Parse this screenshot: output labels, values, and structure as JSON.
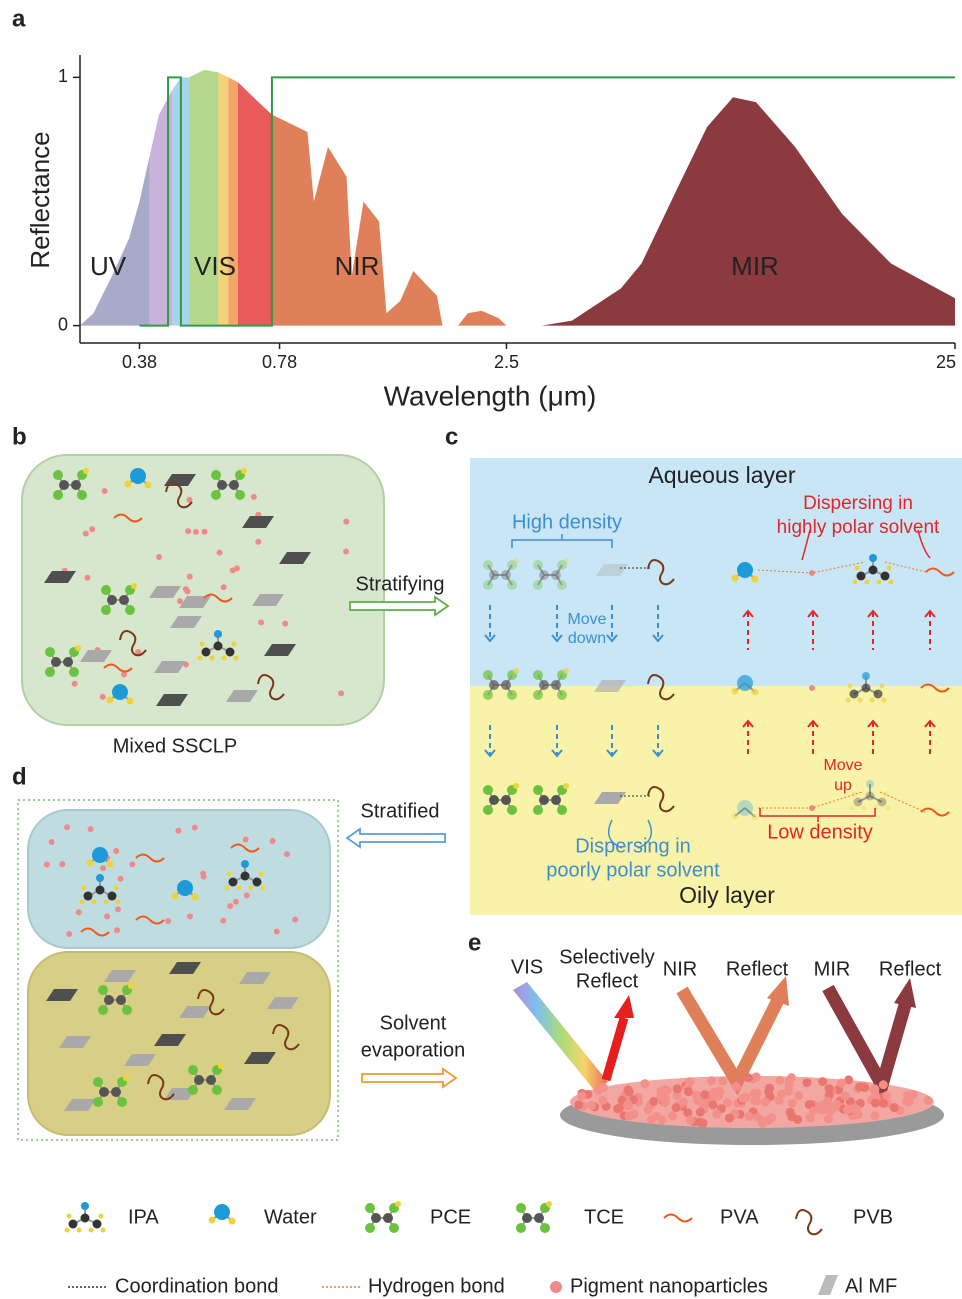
{
  "chart_data": {
    "type": "area",
    "ylabel": "Reflectance",
    "xlabel": "Wavelength (μm)",
    "band_labels": [
      "UV",
      "VIS",
      "NIR",
      "MIR"
    ],
    "xlim": [
      0.28,
      25
    ],
    "ylim": [
      -0.07,
      1.09
    ],
    "x_log": true,
    "xticks": [
      0.38,
      0.78,
      2.5,
      25
    ],
    "yticks": [
      0,
      1
    ],
    "series": [
      {
        "color": "#a9a9c9",
        "x": [
          0.28,
          0.3,
          0.33,
          0.36,
          0.38,
          0.4
        ],
        "values": [
          0,
          0.05,
          0.2,
          0.35,
          0.5,
          0.68
        ]
      },
      {
        "color": "#cab3da",
        "x": [
          0.4,
          0.42,
          0.45
        ],
        "values": [
          0.68,
          0.85,
          0.95
        ]
      },
      {
        "color": "#a9d4ee",
        "x": [
          0.45,
          0.47,
          0.49
        ],
        "values": [
          0.95,
          1.0,
          1.0
        ]
      },
      {
        "color": "#b5d98c",
        "x": [
          0.49,
          0.53,
          0.57
        ],
        "values": [
          1.0,
          1.03,
          1.02
        ]
      },
      {
        "color": "#f5d27a",
        "x": [
          0.57,
          0.6
        ],
        "values": [
          1.02,
          1.0
        ]
      },
      {
        "color": "#f4a56a",
        "x": [
          0.6,
          0.63
        ],
        "values": [
          1.0,
          0.98
        ]
      },
      {
        "color": "#e95a5a",
        "x": [
          0.63,
          0.7,
          0.75
        ],
        "values": [
          0.98,
          0.9,
          0.85
        ]
      },
      {
        "color": "#e0805a",
        "x": [
          0.75,
          0.9,
          0.93,
          1.0,
          1.1,
          1.13,
          1.2,
          1.3,
          1.35,
          1.45,
          1.55,
          1.75,
          1.8,
          1.95,
          2.05,
          2.2,
          2.4,
          2.5
        ],
        "values": [
          0.85,
          0.78,
          0.5,
          0.72,
          0.6,
          0.2,
          0.5,
          0.42,
          0.05,
          0.1,
          0.22,
          0.12,
          0,
          0,
          0.05,
          0.06,
          0.03,
          0
        ]
      },
      {
        "color": "#8b3a3f",
        "x": [
          3,
          3.5,
          4.5,
          5,
          6,
          7,
          8,
          9,
          11,
          14,
          18,
          25
        ],
        "values": [
          0,
          0.02,
          0.15,
          0.25,
          0.55,
          0.8,
          0.92,
          0.9,
          0.72,
          0.45,
          0.25,
          0.11
        ]
      }
    ],
    "reflectance_line": {
      "color": "#2e9a48",
      "x": [
        0.38,
        0.44,
        0.44,
        0.47,
        0.47,
        0.75,
        0.75,
        25
      ],
      "values": [
        0,
        0,
        1,
        1,
        0,
        0,
        1,
        1
      ]
    }
  },
  "panel_labels": [
    "a",
    "b",
    "c",
    "d",
    "e"
  ],
  "panel_b": {
    "caption": "Mixed SSCLP",
    "arrow_label": "Stratifying"
  },
  "panel_c": {
    "top_layer": "Aqueous layer",
    "bottom_layer": "Oily layer",
    "high_density": "High density",
    "move_down": [
      "Move",
      "down"
    ],
    "dispersing_polar": [
      "Dispersing in",
      "highly polar solvent"
    ],
    "move_up": [
      "Move",
      "up"
    ],
    "low_density": "Low density",
    "dispersing_poor": [
      "Dispersing in",
      "poorly polar solvent"
    ]
  },
  "panel_d": {
    "arrow_label": "Stratified",
    "evaporation_label": [
      "Solvent",
      "evaporation"
    ]
  },
  "panel_e": {
    "vis": "VIS",
    "vis_reflect": [
      "Selectively",
      "Reflect"
    ],
    "nir": "NIR",
    "nir_reflect": "Reflect",
    "mir": "MIR",
    "mir_reflect": "Reflect"
  },
  "legend": {
    "molecules": [
      "IPA",
      "Water",
      "PCE",
      "TCE",
      "PVA",
      "PVB"
    ],
    "bonds": [
      "Coordination bond",
      "Hydrogen bond",
      "Pigment nanoparticles",
      "Al MF"
    ]
  }
}
